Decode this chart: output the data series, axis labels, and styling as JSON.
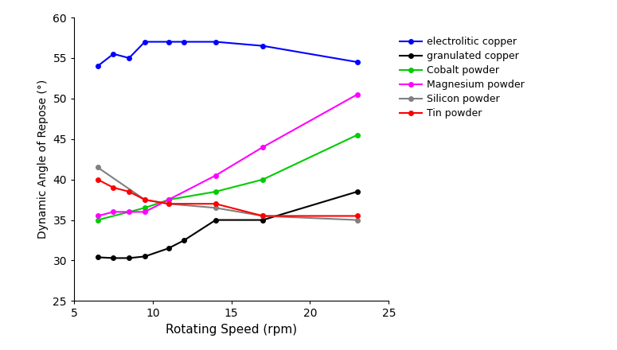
{
  "title": "",
  "xlabel": "Rotating Speed (rpm)",
  "ylabel": "Dynamic Angle of Repose (°)",
  "xlim": [
    5,
    25
  ],
  "ylim": [
    25,
    60
  ],
  "yticks": [
    25,
    30,
    35,
    40,
    45,
    50,
    55,
    60
  ],
  "xticks": [
    5,
    10,
    15,
    20,
    25
  ],
  "series": [
    {
      "label": "electrolitic copper",
      "color": "#0000FF",
      "x": [
        6.5,
        7.5,
        8.5,
        9.5,
        11,
        12,
        14,
        17,
        23
      ],
      "y": [
        54.0,
        55.5,
        55.0,
        57.0,
        57.0,
        57.0,
        57.0,
        56.5,
        54.5
      ]
    },
    {
      "label": "granulated copper",
      "color": "#000000",
      "x": [
        6.5,
        7.5,
        8.5,
        9.5,
        11,
        12,
        14,
        17,
        23
      ],
      "y": [
        30.4,
        30.3,
        30.3,
        30.5,
        31.5,
        32.5,
        35.0,
        35.0,
        38.5
      ]
    },
    {
      "label": "Cobalt powder",
      "color": "#00CC00",
      "x": [
        6.5,
        9.5,
        11,
        14,
        17,
        23
      ],
      "y": [
        35.0,
        36.5,
        37.5,
        38.5,
        40.0,
        45.5
      ]
    },
    {
      "label": "Magnesium powder",
      "color": "#FF00FF",
      "x": [
        6.5,
        7.5,
        8.5,
        9.5,
        11,
        14,
        17,
        23
      ],
      "y": [
        35.5,
        36.0,
        36.0,
        36.0,
        37.5,
        40.5,
        44.0,
        50.5
      ]
    },
    {
      "label": "Silicon powder",
      "color": "#808080",
      "x": [
        6.5,
        9.5,
        11,
        14,
        17,
        23
      ],
      "y": [
        41.5,
        37.5,
        37.0,
        36.5,
        35.5,
        35.0
      ]
    },
    {
      "label": "Tin powder",
      "color": "#FF0000",
      "x": [
        6.5,
        7.5,
        8.5,
        9.5,
        11,
        14,
        17,
        23
      ],
      "y": [
        40.0,
        39.0,
        38.5,
        37.5,
        37.0,
        37.0,
        35.5,
        35.5
      ]
    }
  ],
  "marker": "o",
  "markersize": 4,
  "linewidth": 1.5,
  "legend_fontsize": 9,
  "xlabel_fontsize": 11,
  "ylabel_fontsize": 10,
  "tick_labelsize": 10
}
